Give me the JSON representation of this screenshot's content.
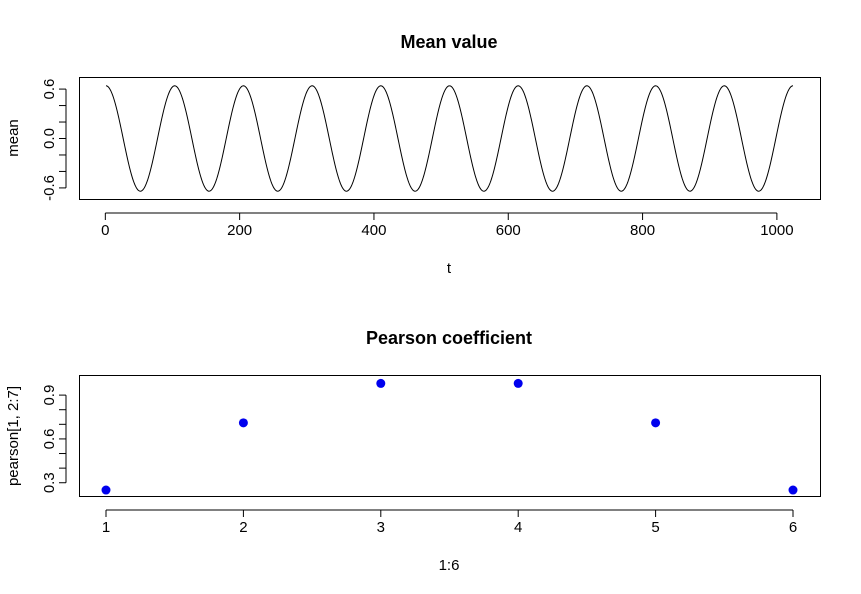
{
  "chart_data": [
    {
      "type": "line",
      "title": "Mean value",
      "xlabel": "t",
      "ylabel": "mean",
      "xlim": [
        1,
        1024
      ],
      "ylim": [
        -0.68,
        0.68
      ],
      "x_ticks": [
        0,
        200,
        400,
        600,
        800,
        1000
      ],
      "x_tick_labels": [
        "0",
        "200",
        "400",
        "600",
        "800",
        "1000"
      ],
      "y_ticks": [
        -0.6,
        0.0,
        0.6
      ],
      "y_tick_labels": [
        "-0.6",
        "0.0",
        "0.6"
      ],
      "y_minor_ticks": [
        -0.6,
        -0.4,
        -0.2,
        0.0,
        0.2,
        0.4,
        0.6
      ],
      "series": [
        {
          "line_color": "#000000",
          "function": "amplitude*cos(2*pi*(t-1)/period)",
          "amplitude": 0.64,
          "period": 102.3,
          "t_start": 1,
          "t_end": 1024
        }
      ],
      "grid": false,
      "legend": "none"
    },
    {
      "type": "scatter",
      "title": "Pearson coefficient",
      "xlabel": "1:6",
      "ylabel": "pearson[1, 2:7]",
      "xlim": [
        1,
        6
      ],
      "ylim": [
        0.24,
        1.0
      ],
      "x_ticks": [
        1,
        2,
        3,
        4,
        5,
        6
      ],
      "x_tick_labels": [
        "1",
        "2",
        "3",
        "4",
        "5",
        "6"
      ],
      "y_ticks": [
        0.3,
        0.6,
        0.9
      ],
      "y_tick_labels": [
        "0.3",
        "0.6",
        "0.9"
      ],
      "y_minor_ticks": [
        0.3,
        0.4,
        0.5,
        0.6,
        0.7,
        0.8,
        0.9
      ],
      "x": [
        1,
        2,
        3,
        4,
        5,
        6
      ],
      "values": [
        0.25,
        0.71,
        0.98,
        0.98,
        0.71,
        0.25
      ],
      "point_color": "#0000ee",
      "grid": false,
      "legend": "none"
    }
  ]
}
